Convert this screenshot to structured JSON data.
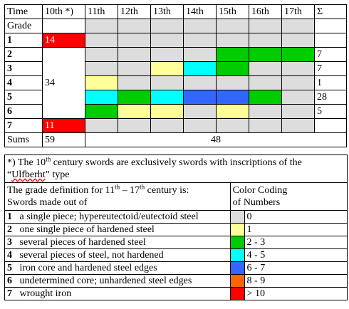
{
  "grid": {
    "headers": [
      "Time",
      "10th *)",
      "11th",
      "12th",
      "13th",
      "14th",
      "15th",
      "16th",
      "17th",
      "Σ"
    ],
    "grade_label": "Grade",
    "grades": [
      "1",
      "2",
      "3",
      "4",
      "5",
      "6",
      "7"
    ],
    "tenth_values": {
      "g1": "14",
      "mid": "34",
      "g7": "11"
    },
    "sums_values": {
      "g2": "7",
      "g3": "7",
      "g4": "1",
      "g5": "28",
      "g6": "5"
    },
    "sums_label": "Sums",
    "sums_tenth": "59",
    "sums_rest": "48"
  },
  "legend": {
    "note_part1": "*) The 10",
    "note_sup": "th",
    "note_part2": " century swords are exclusively swords with inscriptions of the “",
    "note_word": "Ulfberht",
    "note_part3": "” type",
    "grade_def_line1_a": "The grade definition for 11",
    "grade_def_sup1": "th",
    "grade_def_line1_b": " – 17",
    "grade_def_sup2": "th",
    "grade_def_line1_c": " century is:",
    "grade_def_line2": "Swords made out of",
    "color_head1": "Color Coding",
    "color_head2": "of Numbers",
    "items": [
      {
        "num": "1",
        "text": "a single piece; hypereutectoid/eutectoid steel",
        "code": "0"
      },
      {
        "num": "2",
        "text": "one single piece of hardened steel",
        "code": "1"
      },
      {
        "num": "3",
        "text": "several pieces of hardened steel",
        "code": "2 - 3"
      },
      {
        "num": "4",
        "text": "several pieces of steel, not hardened",
        "code": "4 - 5"
      },
      {
        "num": "5",
        "text": "iron core and hardened steel edges",
        "code": "6 - 7"
      },
      {
        "num": "6",
        "text": "undetermined core; unhardened steel edges",
        "code": "8 - 9"
      },
      {
        "num": "7",
        "text": "wrought iron",
        "code": "> 10"
      }
    ]
  },
  "colors": {
    "grey": "#dddddd",
    "yellow": "#ffff99",
    "green": "#00cc00",
    "cyan": "#00ffff",
    "blue": "#3366ff",
    "orange": "#ff6600",
    "red": "#ff0000"
  }
}
